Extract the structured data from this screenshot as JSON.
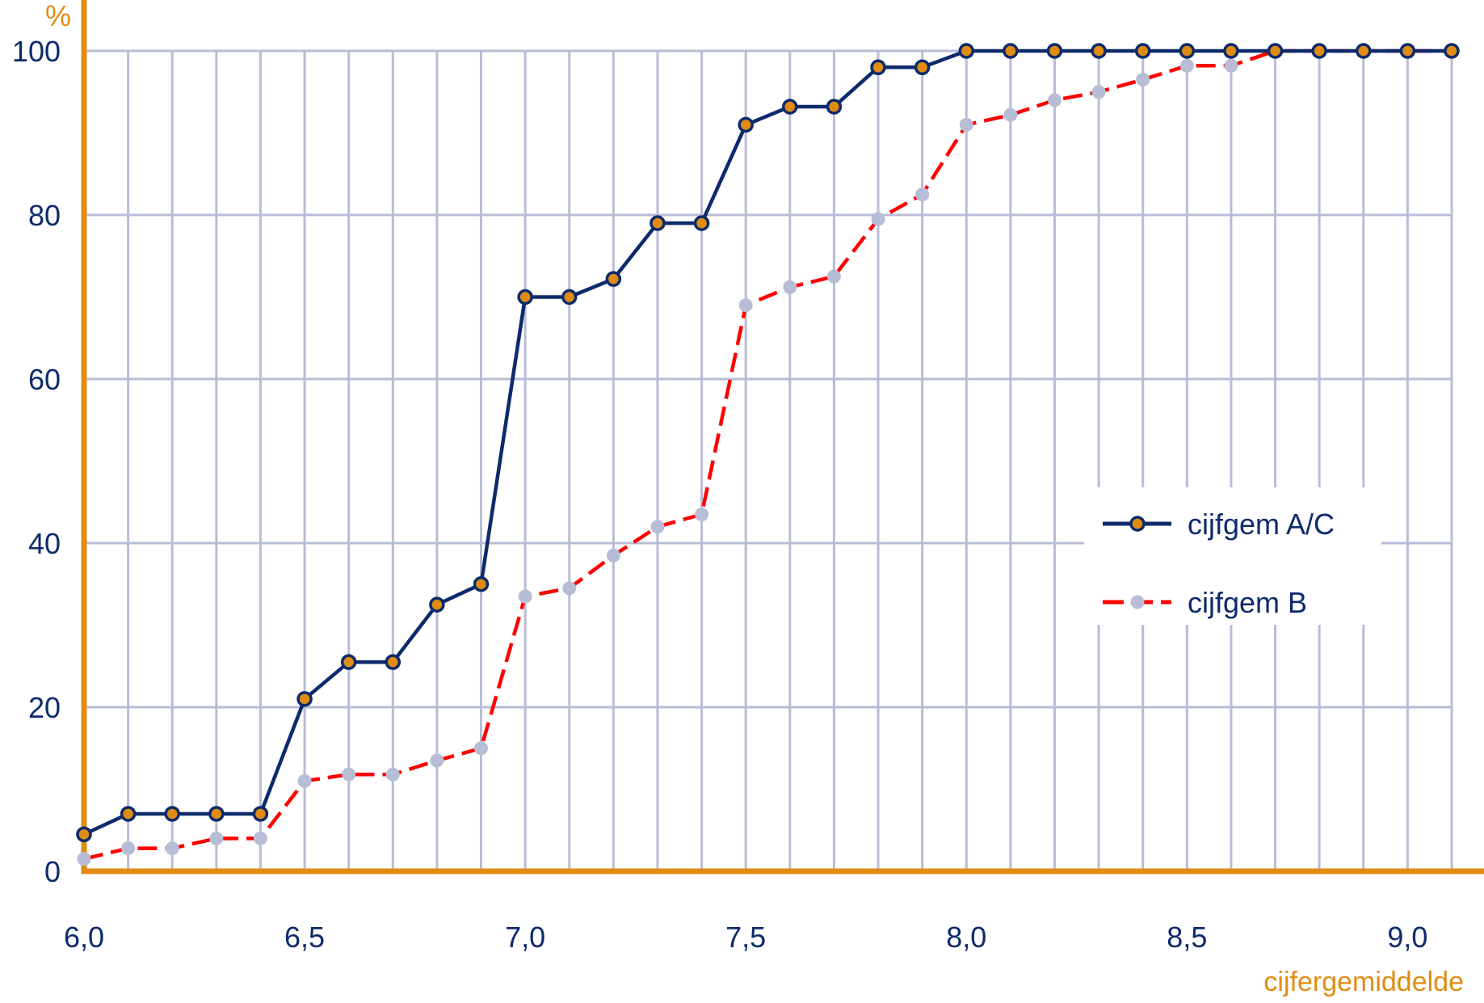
{
  "chart_data": {
    "type": "line",
    "ylabel": "%",
    "xlabel": "cijfergemiddelde",
    "x": [
      6.0,
      6.1,
      6.2,
      6.3,
      6.4,
      6.5,
      6.6,
      6.7,
      6.8,
      6.9,
      7.0,
      7.1,
      7.2,
      7.3,
      7.4,
      7.5,
      7.6,
      7.7,
      7.8,
      7.9,
      8.0,
      8.1,
      8.2,
      8.3,
      8.4,
      8.5,
      8.6,
      8.7,
      8.8,
      8.9,
      9.0,
      9.1
    ],
    "xlim": [
      6.0,
      9.1
    ],
    "ylim": [
      0,
      100
    ],
    "x_ticks": [
      6.0,
      6.5,
      7.0,
      7.5,
      8.0,
      8.5,
      9.0
    ],
    "x_tick_labels": [
      "6,0",
      "6,5",
      "7,0",
      "7,5",
      "8,0",
      "8,5",
      "9,0"
    ],
    "y_ticks": [
      0,
      20,
      40,
      60,
      80,
      100
    ],
    "y_tick_labels": [
      "0",
      "20",
      "40",
      "60",
      "80",
      "100"
    ],
    "grid": true,
    "legend_position": "right",
    "series": [
      {
        "name": "cijfgem A/C",
        "values": [
          4.5,
          7,
          7,
          7,
          7,
          21,
          25.5,
          25.5,
          32.5,
          35,
          70,
          70,
          72.2,
          79,
          79,
          91,
          93.2,
          93.2,
          98,
          98,
          100,
          100,
          100,
          100,
          100,
          100,
          100,
          100,
          100,
          100,
          100,
          100
        ],
        "line_color": "#0d2a6b",
        "marker_color": "#e08c12",
        "dashed": false
      },
      {
        "name": "cijfgem B",
        "values": [
          1.5,
          2.8,
          2.8,
          4,
          4,
          11,
          11.8,
          11.8,
          13.5,
          15,
          33.5,
          34.5,
          38.5,
          42,
          43.5,
          69,
          71.2,
          72.5,
          79.5,
          82.5,
          91,
          92.2,
          94,
          95,
          96.5,
          98.2,
          98.2,
          100,
          100,
          100,
          100,
          100
        ],
        "line_color": "#ff0000",
        "marker_color": "#b8bdd6",
        "dashed": true
      }
    ]
  },
  "colors": {
    "axis": "#e08c12",
    "grid": "#b8bdd6",
    "tick_text": "#0d2a6b",
    "axis_title": "#e08c12"
  }
}
